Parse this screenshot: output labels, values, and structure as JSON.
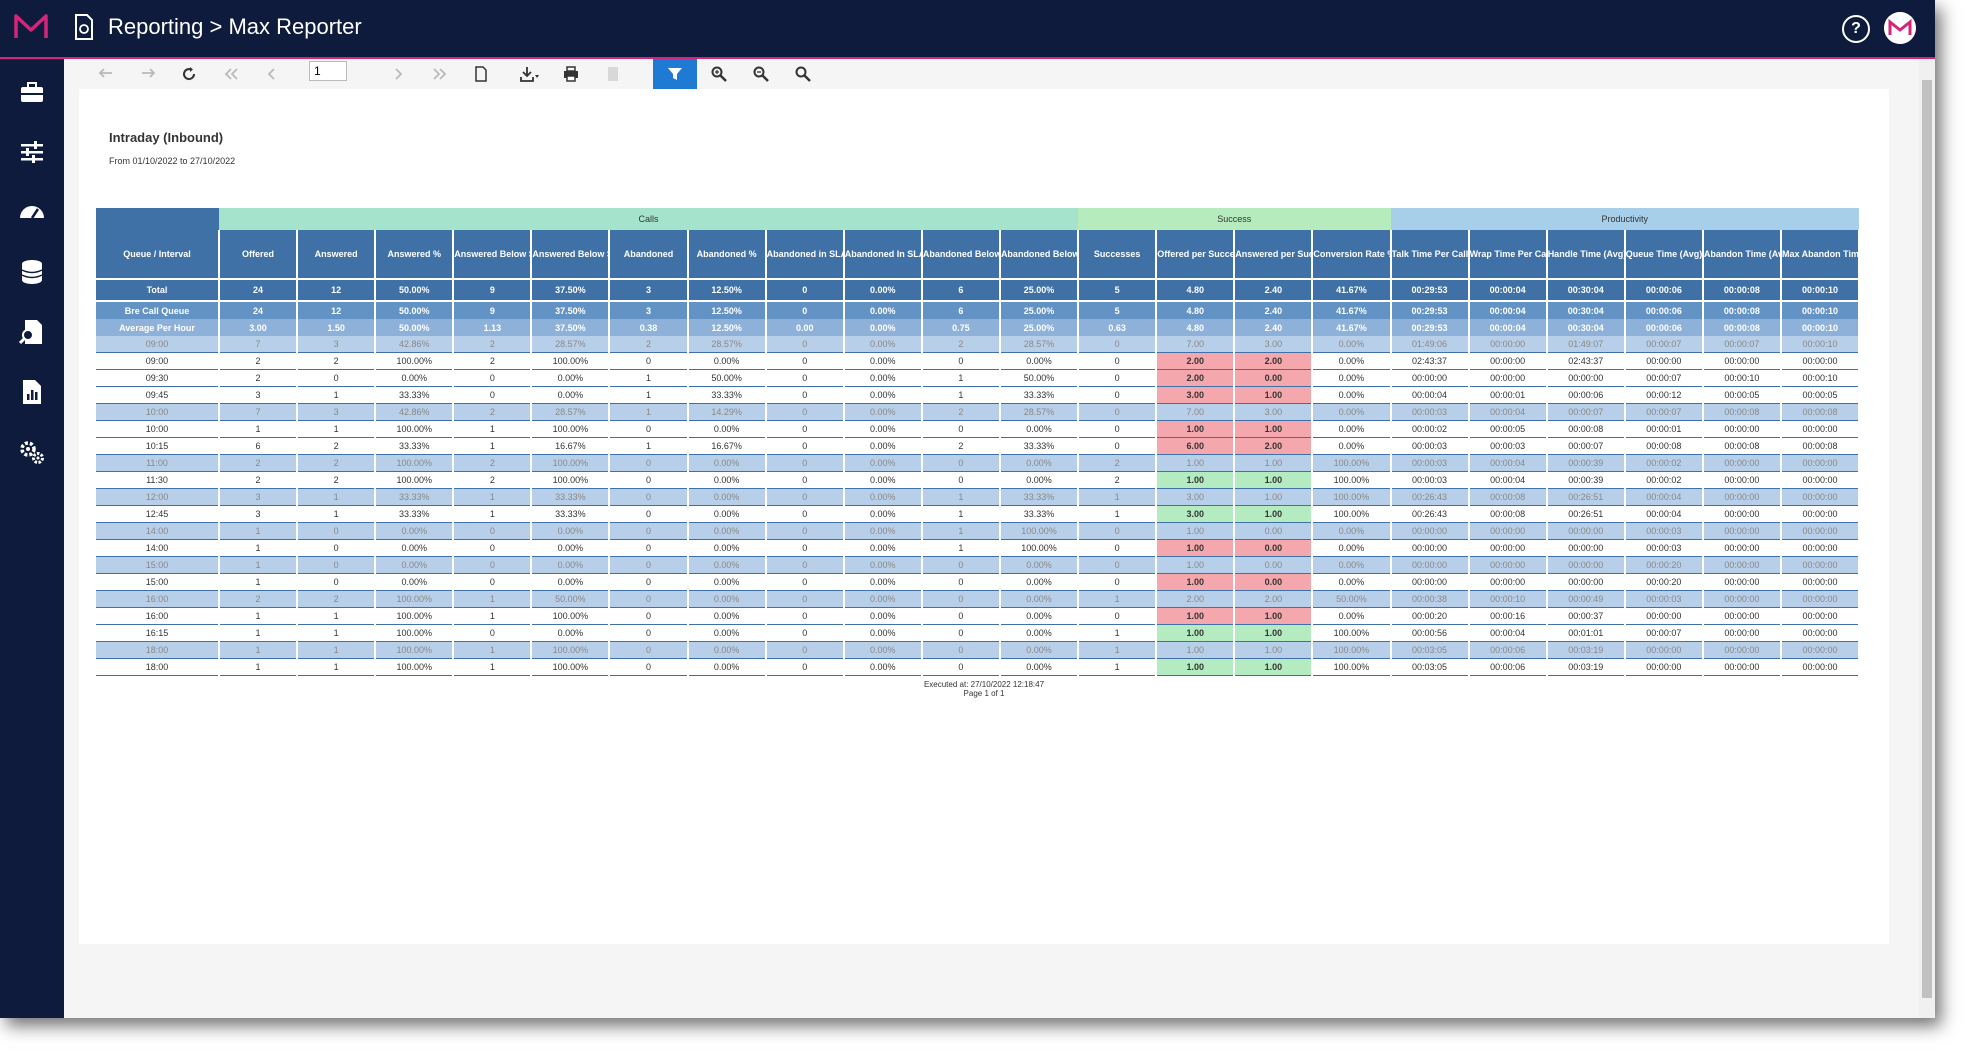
{
  "app": {
    "title": "Reporting > Max Reporter",
    "help_glyph": "?"
  },
  "sidebar_icons": [
    "briefcase-icon",
    "sliders-icon",
    "dashboard-icon",
    "database-icon",
    "search-document-icon",
    "report-icon",
    "settings-icon"
  ],
  "toolbar": {
    "page_number": "1"
  },
  "report": {
    "title": "Intraday (Inbound)",
    "subtitle": "From 01/10/2022 to 27/10/2022",
    "executed": "Executed at: 27/10/2022 12:18:47",
    "page": "Page 1 of 1"
  },
  "table": {
    "groups": {
      "calls": "Calls",
      "success": "Success",
      "productivity": "Productivity"
    },
    "headers": [
      "Queue / Interval",
      "Offered",
      "Answered",
      "Answered %",
      "Answered Below SLA",
      "Answered Below SLA %",
      "Abandoned",
      "Abandoned %",
      "Abandoned in SLA",
      "Abandoned In SLA %",
      "Abandoned Below Threshold",
      "Abandoned Below Threshold %",
      "Successes",
      "Offered per Success",
      "Answered per Success",
      "Conversion Rate % (Answered)",
      "Talk Time Per Call (Avg)",
      "Wrap Time Per Call (Avg)",
      "Handle Time (Avg)",
      "Queue Time (Avg)",
      "Abandon Time (Avg)",
      "Max Abandon Time"
    ],
    "summary": [
      [
        "Total",
        "24",
        "12",
        "50.00%",
        "9",
        "37.50%",
        "3",
        "12.50%",
        "0",
        "0.00%",
        "6",
        "25.00%",
        "5",
        "4.80",
        "2.40",
        "41.67%",
        "00:29:53",
        "00:00:04",
        "00:30:04",
        "00:00:06",
        "00:00:08",
        "00:00:10"
      ],
      [
        "Bre Call Queue",
        "24",
        "12",
        "50.00%",
        "9",
        "37.50%",
        "3",
        "12.50%",
        "0",
        "0.00%",
        "6",
        "25.00%",
        "5",
        "4.80",
        "2.40",
        "41.67%",
        "00:29:53",
        "00:00:04",
        "00:30:04",
        "00:00:06",
        "00:00:08",
        "00:00:10"
      ],
      [
        "Average Per Hour",
        "3.00",
        "1.50",
        "50.00%",
        "1.13",
        "37.50%",
        "0.38",
        "12.50%",
        "0.00",
        "0.00%",
        "0.75",
        "25.00%",
        "0.63",
        "4.80",
        "2.40",
        "41.67%",
        "00:29:53",
        "00:00:04",
        "00:30:04",
        "00:00:06",
        "00:00:08",
        "00:00:10"
      ]
    ],
    "rows": [
      [
        "09:00",
        "7",
        "3",
        "42.86%",
        "2",
        "28.57%",
        "2",
        "28.57%",
        "0",
        "0.00%",
        "2",
        "28.57%",
        "0",
        "7.00",
        "3.00",
        "0.00%",
        "01:49:06",
        "00:00:00",
        "01:49:07",
        "00:00:07",
        "00:00:07",
        "00:00:10"
      ],
      [
        "09:00",
        "2",
        "2",
        "100.00%",
        "2",
        "100.00%",
        "0",
        "0.00%",
        "0",
        "0.00%",
        "0",
        "0.00%",
        "0",
        "2.00",
        "2.00",
        "0.00%",
        "02:43:37",
        "00:00:00",
        "02:43:37",
        "00:00:00",
        "00:00:00",
        "00:00:00"
      ],
      [
        "09:30",
        "2",
        "0",
        "0.00%",
        "0",
        "0.00%",
        "1",
        "50.00%",
        "0",
        "0.00%",
        "1",
        "50.00%",
        "0",
        "2.00",
        "0.00",
        "0.00%",
        "00:00:00",
        "00:00:00",
        "00:00:00",
        "00:00:07",
        "00:00:10",
        "00:00:10"
      ],
      [
        "09:45",
        "3",
        "1",
        "33.33%",
        "0",
        "0.00%",
        "1",
        "33.33%",
        "0",
        "0.00%",
        "1",
        "33.33%",
        "0",
        "3.00",
        "1.00",
        "0.00%",
        "00:00:04",
        "00:00:01",
        "00:00:06",
        "00:00:12",
        "00:00:05",
        "00:00:05"
      ],
      [
        "10:00",
        "7",
        "3",
        "42.86%",
        "2",
        "28.57%",
        "1",
        "14.29%",
        "0",
        "0.00%",
        "2",
        "28.57%",
        "0",
        "7.00",
        "3.00",
        "0.00%",
        "00:00:03",
        "00:00:04",
        "00:00:07",
        "00:00:07",
        "00:00:08",
        "00:00:08"
      ],
      [
        "10:00",
        "1",
        "1",
        "100.00%",
        "1",
        "100.00%",
        "0",
        "0.00%",
        "0",
        "0.00%",
        "0",
        "0.00%",
        "0",
        "1.00",
        "1.00",
        "0.00%",
        "00:00:02",
        "00:00:05",
        "00:00:08",
        "00:00:01",
        "00:00:00",
        "00:00:00"
      ],
      [
        "10:15",
        "6",
        "2",
        "33.33%",
        "1",
        "16.67%",
        "1",
        "16.67%",
        "0",
        "0.00%",
        "2",
        "33.33%",
        "0",
        "6.00",
        "2.00",
        "0.00%",
        "00:00:03",
        "00:00:03",
        "00:00:07",
        "00:00:08",
        "00:00:08",
        "00:00:08"
      ],
      [
        "11:00",
        "2",
        "2",
        "100.00%",
        "2",
        "100.00%",
        "0",
        "0.00%",
        "0",
        "0.00%",
        "0",
        "0.00%",
        "2",
        "1.00",
        "1.00",
        "100.00%",
        "00:00:03",
        "00:00:04",
        "00:00:39",
        "00:00:02",
        "00:00:00",
        "00:00:00"
      ],
      [
        "11:30",
        "2",
        "2",
        "100.00%",
        "2",
        "100.00%",
        "0",
        "0.00%",
        "0",
        "0.00%",
        "0",
        "0.00%",
        "2",
        "1.00",
        "1.00",
        "100.00%",
        "00:00:03",
        "00:00:04",
        "00:00:39",
        "00:00:02",
        "00:00:00",
        "00:00:00"
      ],
      [
        "12:00",
        "3",
        "1",
        "33.33%",
        "1",
        "33.33%",
        "0",
        "0.00%",
        "0",
        "0.00%",
        "1",
        "33.33%",
        "1",
        "3.00",
        "1.00",
        "100.00%",
        "00:26:43",
        "00:00:08",
        "00:26:51",
        "00:00:04",
        "00:00:00",
        "00:00:00"
      ],
      [
        "12:45",
        "3",
        "1",
        "33.33%",
        "1",
        "33.33%",
        "0",
        "0.00%",
        "0",
        "0.00%",
        "1",
        "33.33%",
        "1",
        "3.00",
        "1.00",
        "100.00%",
        "00:26:43",
        "00:00:08",
        "00:26:51",
        "00:00:04",
        "00:00:00",
        "00:00:00"
      ],
      [
        "14:00",
        "1",
        "0",
        "0.00%",
        "0",
        "0.00%",
        "0",
        "0.00%",
        "0",
        "0.00%",
        "1",
        "100.00%",
        "0",
        "1.00",
        "0.00",
        "0.00%",
        "00:00:00",
        "00:00:00",
        "00:00:00",
        "00:00:03",
        "00:00:00",
        "00:00:00"
      ],
      [
        "14:00",
        "1",
        "0",
        "0.00%",
        "0",
        "0.00%",
        "0",
        "0.00%",
        "0",
        "0.00%",
        "1",
        "100.00%",
        "0",
        "1.00",
        "0.00",
        "0.00%",
        "00:00:00",
        "00:00:00",
        "00:00:00",
        "00:00:03",
        "00:00:00",
        "00:00:00"
      ],
      [
        "15:00",
        "1",
        "0",
        "0.00%",
        "0",
        "0.00%",
        "0",
        "0.00%",
        "0",
        "0.00%",
        "0",
        "0.00%",
        "0",
        "1.00",
        "0.00",
        "0.00%",
        "00:00:00",
        "00:00:00",
        "00:00:00",
        "00:00:20",
        "00:00:00",
        "00:00:00"
      ],
      [
        "15:00",
        "1",
        "0",
        "0.00%",
        "0",
        "0.00%",
        "0",
        "0.00%",
        "0",
        "0.00%",
        "0",
        "0.00%",
        "0",
        "1.00",
        "0.00",
        "0.00%",
        "00:00:00",
        "00:00:00",
        "00:00:00",
        "00:00:20",
        "00:00:00",
        "00:00:00"
      ],
      [
        "16:00",
        "2",
        "2",
        "100.00%",
        "1",
        "50.00%",
        "0",
        "0.00%",
        "0",
        "0.00%",
        "0",
        "0.00%",
        "1",
        "2.00",
        "2.00",
        "50.00%",
        "00:00:38",
        "00:00:10",
        "00:00:49",
        "00:00:03",
        "00:00:00",
        "00:00:00"
      ],
      [
        "16:00",
        "1",
        "1",
        "100.00%",
        "1",
        "100.00%",
        "0",
        "0.00%",
        "0",
        "0.00%",
        "0",
        "0.00%",
        "0",
        "1.00",
        "1.00",
        "0.00%",
        "00:00:20",
        "00:00:16",
        "00:00:37",
        "00:00:00",
        "00:00:00",
        "00:00:00"
      ],
      [
        "16:15",
        "1",
        "1",
        "100.00%",
        "0",
        "0.00%",
        "0",
        "0.00%",
        "0",
        "0.00%",
        "0",
        "0.00%",
        "1",
        "1.00",
        "1.00",
        "100.00%",
        "00:00:56",
        "00:00:04",
        "00:01:01",
        "00:00:07",
        "00:00:00",
        "00:00:00"
      ],
      [
        "18:00",
        "1",
        "1",
        "100.00%",
        "1",
        "100.00%",
        "0",
        "0.00%",
        "0",
        "0.00%",
        "0",
        "0.00%",
        "1",
        "1.00",
        "1.00",
        "100.00%",
        "00:03:05",
        "00:00:06",
        "00:03:19",
        "00:00:00",
        "00:00:00",
        "00:00:00"
      ],
      [
        "18:00",
        "1",
        "1",
        "100.00%",
        "1",
        "100.00%",
        "0",
        "0.00%",
        "0",
        "0.00%",
        "0",
        "0.00%",
        "1",
        "1.00",
        "1.00",
        "100.00%",
        "00:03:05",
        "00:00:06",
        "00:03:19",
        "00:00:00",
        "00:00:00",
        "00:00:00"
      ]
    ],
    "row_types": [
      "hr",
      "qr",
      "qr",
      "qr",
      "hr",
      "qr",
      "qr",
      "hr",
      "qr",
      "hr",
      "qr",
      "hr",
      "qr",
      "hr",
      "qr",
      "hr",
      "qr",
      "qr",
      "hr",
      "qr"
    ],
    "colors": {
      "header": "#3f71a7",
      "calls": "#a6e3cc",
      "success": "#b6ebbe",
      "productivity": "#a7cfe9",
      "bad": "#f4a7ad",
      "good": "#b5ebc1"
    }
  }
}
